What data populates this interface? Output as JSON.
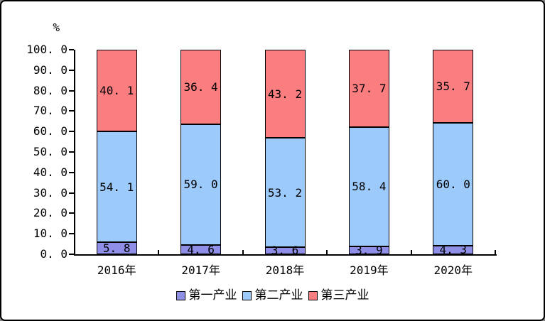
{
  "chart_data": {
    "type": "bar",
    "stacked": true,
    "ylabel": "%",
    "ylim": [
      0,
      100
    ],
    "ytick_step": 10,
    "grid": false,
    "legend_position": "bottom",
    "number_format": "one_decimal_space_after_point",
    "axis_color": "#000000",
    "bar_border_color": "#000000",
    "categories": [
      "2016年",
      "2017年",
      "2018年",
      "2019年",
      "2020年"
    ],
    "series": [
      {
        "name": "第一产业",
        "color": "#8F8FE8",
        "values": [
          5.8,
          4.6,
          3.6,
          3.9,
          4.3
        ]
      },
      {
        "name": "第二产业",
        "color": "#9CCAFB",
        "values": [
          54.1,
          59.0,
          53.2,
          58.4,
          60.0
        ]
      },
      {
        "name": "第三产业",
        "color": "#FA7D80",
        "values": [
          40.1,
          36.4,
          43.2,
          37.7,
          35.7
        ]
      }
    ]
  }
}
